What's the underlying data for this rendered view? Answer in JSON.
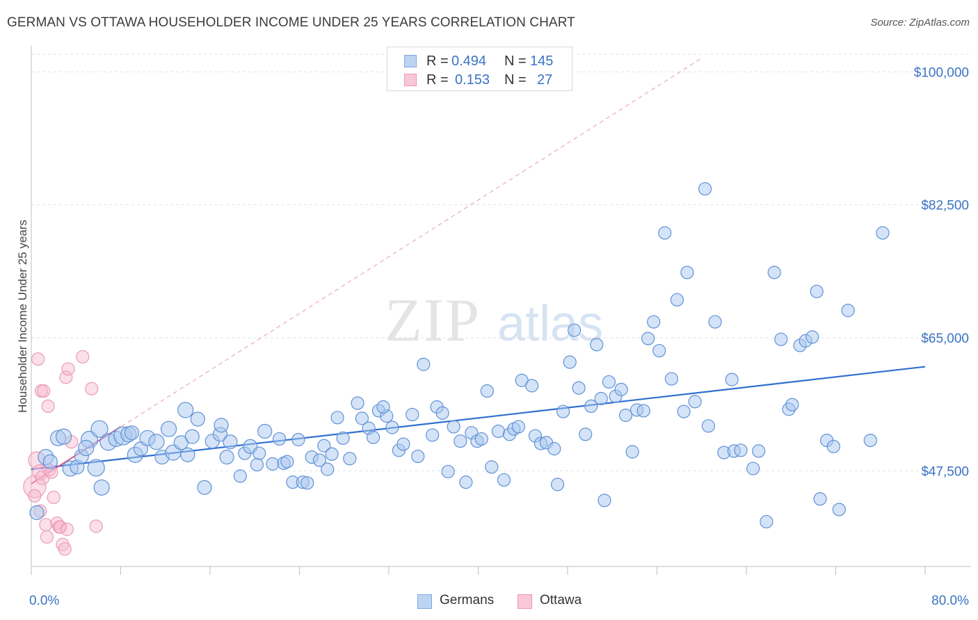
{
  "title": "GERMAN VS OTTAWA HOUSEHOLDER INCOME UNDER 25 YEARS CORRELATION CHART",
  "source": "Source: ZipAtlas.com",
  "watermark": {
    "zip": "ZIP",
    "atlas": "atlas"
  },
  "legend": {
    "row1": {
      "r_label": "R =",
      "r_value": "0.494",
      "n_label": "N =",
      "n_value": "145"
    },
    "row2": {
      "r_label": "R =",
      "r_value": "0.153",
      "n_label": "N =",
      "n_value": "27"
    }
  },
  "bottom_legend": {
    "germans": "Germans",
    "ottawa": "Ottawa"
  },
  "colors": {
    "blue": "#3a73c4",
    "blue_fill": "#a9c7ef",
    "pink": "#e06a95",
    "pink_fill": "#f5b8cc"
  },
  "chart_data": {
    "type": "scatter",
    "title": "GERMAN VS OTTAWA HOUSEHOLDER INCOME UNDER 25 YEARS CORRELATION CHART",
    "xlabel": "",
    "ylabel": "Householder Income Under 25 years",
    "xlim": [
      0,
      80
    ],
    "ylim": [
      35000,
      102500
    ],
    "x_tick_labels": [
      "0.0%",
      "80.0%"
    ],
    "y_ticks": [
      47500,
      65000,
      82500,
      100000
    ],
    "y_tick_labels": [
      "$47,500",
      "$65,000",
      "$82,500",
      "$100,000"
    ],
    "grid": "horizontal dashed",
    "legend_position": "top-center",
    "series": [
      {
        "name": "Germans",
        "color": "#3a73c4",
        "R": 0.494,
        "N": 145,
        "trend": {
          "x": [
            0,
            80
          ],
          "y": [
            47700,
            61200
          ]
        },
        "points": [
          [
            0.5,
            42000,
            10
          ],
          [
            1.3,
            49300,
            11
          ],
          [
            1.7,
            48700,
            10
          ],
          [
            2.4,
            51800,
            11
          ],
          [
            2.9,
            52000,
            11
          ],
          [
            3.5,
            47800,
            11
          ],
          [
            4.1,
            48000,
            10
          ],
          [
            4.5,
            49400,
            10
          ],
          [
            5.2,
            51600,
            12
          ],
          [
            5.8,
            47900,
            12
          ],
          [
            6.3,
            45300,
            11
          ],
          [
            6.9,
            51300,
            12
          ],
          [
            7.6,
            51700,
            11
          ],
          [
            8.2,
            52100,
            13
          ],
          [
            8.7,
            52300,
            11
          ],
          [
            9.3,
            49600,
            11
          ],
          [
            9.8,
            50400,
            10
          ],
          [
            10.4,
            51800,
            11
          ],
          [
            11.2,
            51300,
            11
          ],
          [
            11.7,
            49300,
            10
          ],
          [
            12.3,
            53000,
            11
          ],
          [
            12.7,
            49900,
            11
          ],
          [
            13.4,
            51200,
            10
          ],
          [
            14.0,
            49600,
            10
          ],
          [
            14.4,
            52000,
            10
          ],
          [
            14.9,
            54300,
            10
          ],
          [
            15.5,
            45300,
            10
          ],
          [
            16.2,
            51400,
            10
          ],
          [
            16.9,
            52300,
            10
          ],
          [
            17.5,
            49300,
            10
          ],
          [
            17.8,
            51300,
            10
          ],
          [
            18.7,
            46800,
            9
          ],
          [
            19.1,
            49800,
            9
          ],
          [
            19.6,
            50700,
            10
          ],
          [
            20.4,
            49800,
            9
          ],
          [
            20.9,
            52700,
            10
          ],
          [
            21.6,
            48400,
            9
          ],
          [
            22.2,
            51700,
            9
          ],
          [
            22.6,
            48500,
            9
          ],
          [
            22.9,
            48700,
            9
          ],
          [
            23.4,
            46000,
            9
          ],
          [
            23.9,
            51600,
            9
          ],
          [
            24.3,
            46000,
            9
          ],
          [
            24.7,
            45900,
            9
          ],
          [
            25.1,
            49300,
            9
          ],
          [
            25.8,
            48900,
            9
          ],
          [
            26.2,
            50800,
            9
          ],
          [
            26.9,
            49700,
            9
          ],
          [
            27.4,
            54500,
            9
          ],
          [
            27.9,
            51800,
            9
          ],
          [
            28.5,
            49100,
            9
          ],
          [
            29.2,
            56400,
            9
          ],
          [
            29.6,
            54400,
            9
          ],
          [
            30.2,
            53100,
            9
          ],
          [
            30.6,
            51900,
            9
          ],
          [
            31.1,
            55400,
            9
          ],
          [
            31.8,
            54700,
            9
          ],
          [
            32.3,
            53200,
            9
          ],
          [
            32.9,
            50200,
            9
          ],
          [
            33.3,
            51000,
            9
          ],
          [
            34.1,
            54900,
            9
          ],
          [
            34.6,
            49400,
            9
          ],
          [
            35.1,
            61500,
            9
          ],
          [
            35.9,
            52200,
            9
          ],
          [
            36.3,
            55900,
            9
          ],
          [
            36.8,
            55100,
            9
          ],
          [
            37.3,
            47400,
            9
          ],
          [
            37.8,
            53300,
            9
          ],
          [
            38.4,
            51400,
            9
          ],
          [
            38.9,
            46000,
            9
          ],
          [
            39.4,
            52500,
            9
          ],
          [
            39.9,
            51400,
            9
          ],
          [
            40.3,
            51700,
            9
          ],
          [
            40.8,
            58000,
            9
          ],
          [
            41.2,
            48000,
            9
          ],
          [
            41.8,
            52700,
            9
          ],
          [
            42.3,
            46300,
            9
          ],
          [
            42.8,
            52300,
            9
          ],
          [
            43.2,
            53000,
            9
          ],
          [
            43.6,
            53300,
            9
          ],
          [
            43.9,
            59400,
            9
          ],
          [
            44.8,
            58700,
            9
          ],
          [
            45.1,
            52100,
            9
          ],
          [
            45.6,
            51100,
            9
          ],
          [
            46.1,
            51200,
            9
          ],
          [
            46.8,
            50400,
            9
          ],
          [
            47.1,
            45700,
            9
          ],
          [
            47.6,
            55300,
            9
          ],
          [
            48.2,
            61800,
            9
          ],
          [
            48.6,
            66000,
            9
          ],
          [
            49.0,
            58400,
            9
          ],
          [
            49.6,
            52300,
            9
          ],
          [
            50.1,
            56000,
            9
          ],
          [
            50.6,
            64100,
            9
          ],
          [
            51.0,
            57000,
            9
          ],
          [
            51.3,
            43600,
            9
          ],
          [
            51.7,
            59200,
            9
          ],
          [
            52.3,
            57300,
            9
          ],
          [
            52.8,
            58200,
            9
          ],
          [
            53.2,
            54800,
            9
          ],
          [
            53.8,
            50000,
            9
          ],
          [
            54.2,
            55500,
            9
          ],
          [
            54.8,
            55400,
            9
          ],
          [
            55.2,
            64900,
            9
          ],
          [
            55.7,
            67100,
            9
          ],
          [
            56.2,
            63300,
            9
          ],
          [
            56.7,
            78800,
            9
          ],
          [
            57.3,
            59600,
            9
          ],
          [
            57.8,
            70000,
            9
          ],
          [
            58.4,
            55300,
            9
          ],
          [
            58.7,
            73600,
            9
          ],
          [
            59.4,
            56600,
            9
          ],
          [
            60.3,
            84600,
            9
          ],
          [
            60.6,
            53400,
            9
          ],
          [
            61.2,
            67100,
            9
          ],
          [
            62.0,
            49900,
            9
          ],
          [
            62.7,
            59500,
            9
          ],
          [
            62.9,
            50100,
            9
          ],
          [
            63.5,
            50200,
            9
          ],
          [
            64.6,
            47800,
            9
          ],
          [
            65.1,
            50100,
            9
          ],
          [
            65.8,
            40800,
            9
          ],
          [
            66.5,
            73600,
            9
          ],
          [
            67.1,
            64800,
            9
          ],
          [
            67.8,
            55600,
            9
          ],
          [
            68.1,
            56200,
            9
          ],
          [
            68.8,
            64000,
            9
          ],
          [
            69.3,
            64600,
            9
          ],
          [
            69.9,
            65100,
            9
          ],
          [
            70.3,
            71100,
            9
          ],
          [
            70.6,
            43800,
            9
          ],
          [
            71.2,
            51500,
            9
          ],
          [
            71.8,
            50700,
            9
          ],
          [
            72.3,
            42400,
            9
          ],
          [
            73.1,
            68600,
            9
          ],
          [
            75.1,
            51500,
            9
          ],
          [
            76.2,
            78800,
            9
          ],
          [
            6.1,
            53000,
            12
          ],
          [
            4.9,
            50500,
            11
          ],
          [
            9.0,
            52500,
            10
          ],
          [
            13.8,
            55500,
            11
          ],
          [
            17.0,
            53500,
            10
          ],
          [
            20.2,
            48300,
            9
          ],
          [
            26.5,
            47700,
            9
          ],
          [
            31.5,
            55900,
            9
          ]
        ]
      },
      {
        "name": "Ottawa",
        "color": "#e06a95",
        "R": 0.153,
        "N": 27,
        "trend": {
          "x": [
            0,
            8
          ],
          "y": [
            45800,
            53300
          ]
        },
        "trend_extension": {
          "x": [
            0,
            60
          ],
          "y": [
            45800,
            101800
          ]
        },
        "points": [
          [
            0.3,
            45400,
            16
          ],
          [
            0.5,
            48900,
            12
          ],
          [
            0.8,
            47300,
            11
          ],
          [
            1.0,
            46600,
            10
          ],
          [
            0.6,
            62200,
            9
          ],
          [
            0.9,
            58000,
            9
          ],
          [
            1.1,
            58000,
            9
          ],
          [
            1.5,
            56000,
            9
          ],
          [
            1.6,
            47600,
            9
          ],
          [
            1.8,
            47300,
            9
          ],
          [
            0.3,
            44200,
            9
          ],
          [
            0.8,
            42200,
            9
          ],
          [
            1.3,
            40400,
            9
          ],
          [
            2.0,
            44000,
            9
          ],
          [
            2.3,
            40600,
            9
          ],
          [
            2.5,
            40100,
            9
          ],
          [
            2.6,
            40100,
            9
          ],
          [
            2.8,
            37800,
            9
          ],
          [
            3.0,
            37200,
            9
          ],
          [
            3.1,
            59800,
            9
          ],
          [
            3.3,
            60900,
            9
          ],
          [
            3.6,
            51300,
            9
          ],
          [
            4.6,
            62500,
            9
          ],
          [
            5.4,
            58300,
            9
          ],
          [
            5.8,
            40200,
            9
          ],
          [
            1.4,
            38800,
            9
          ],
          [
            3.2,
            39800,
            9
          ]
        ]
      }
    ]
  }
}
